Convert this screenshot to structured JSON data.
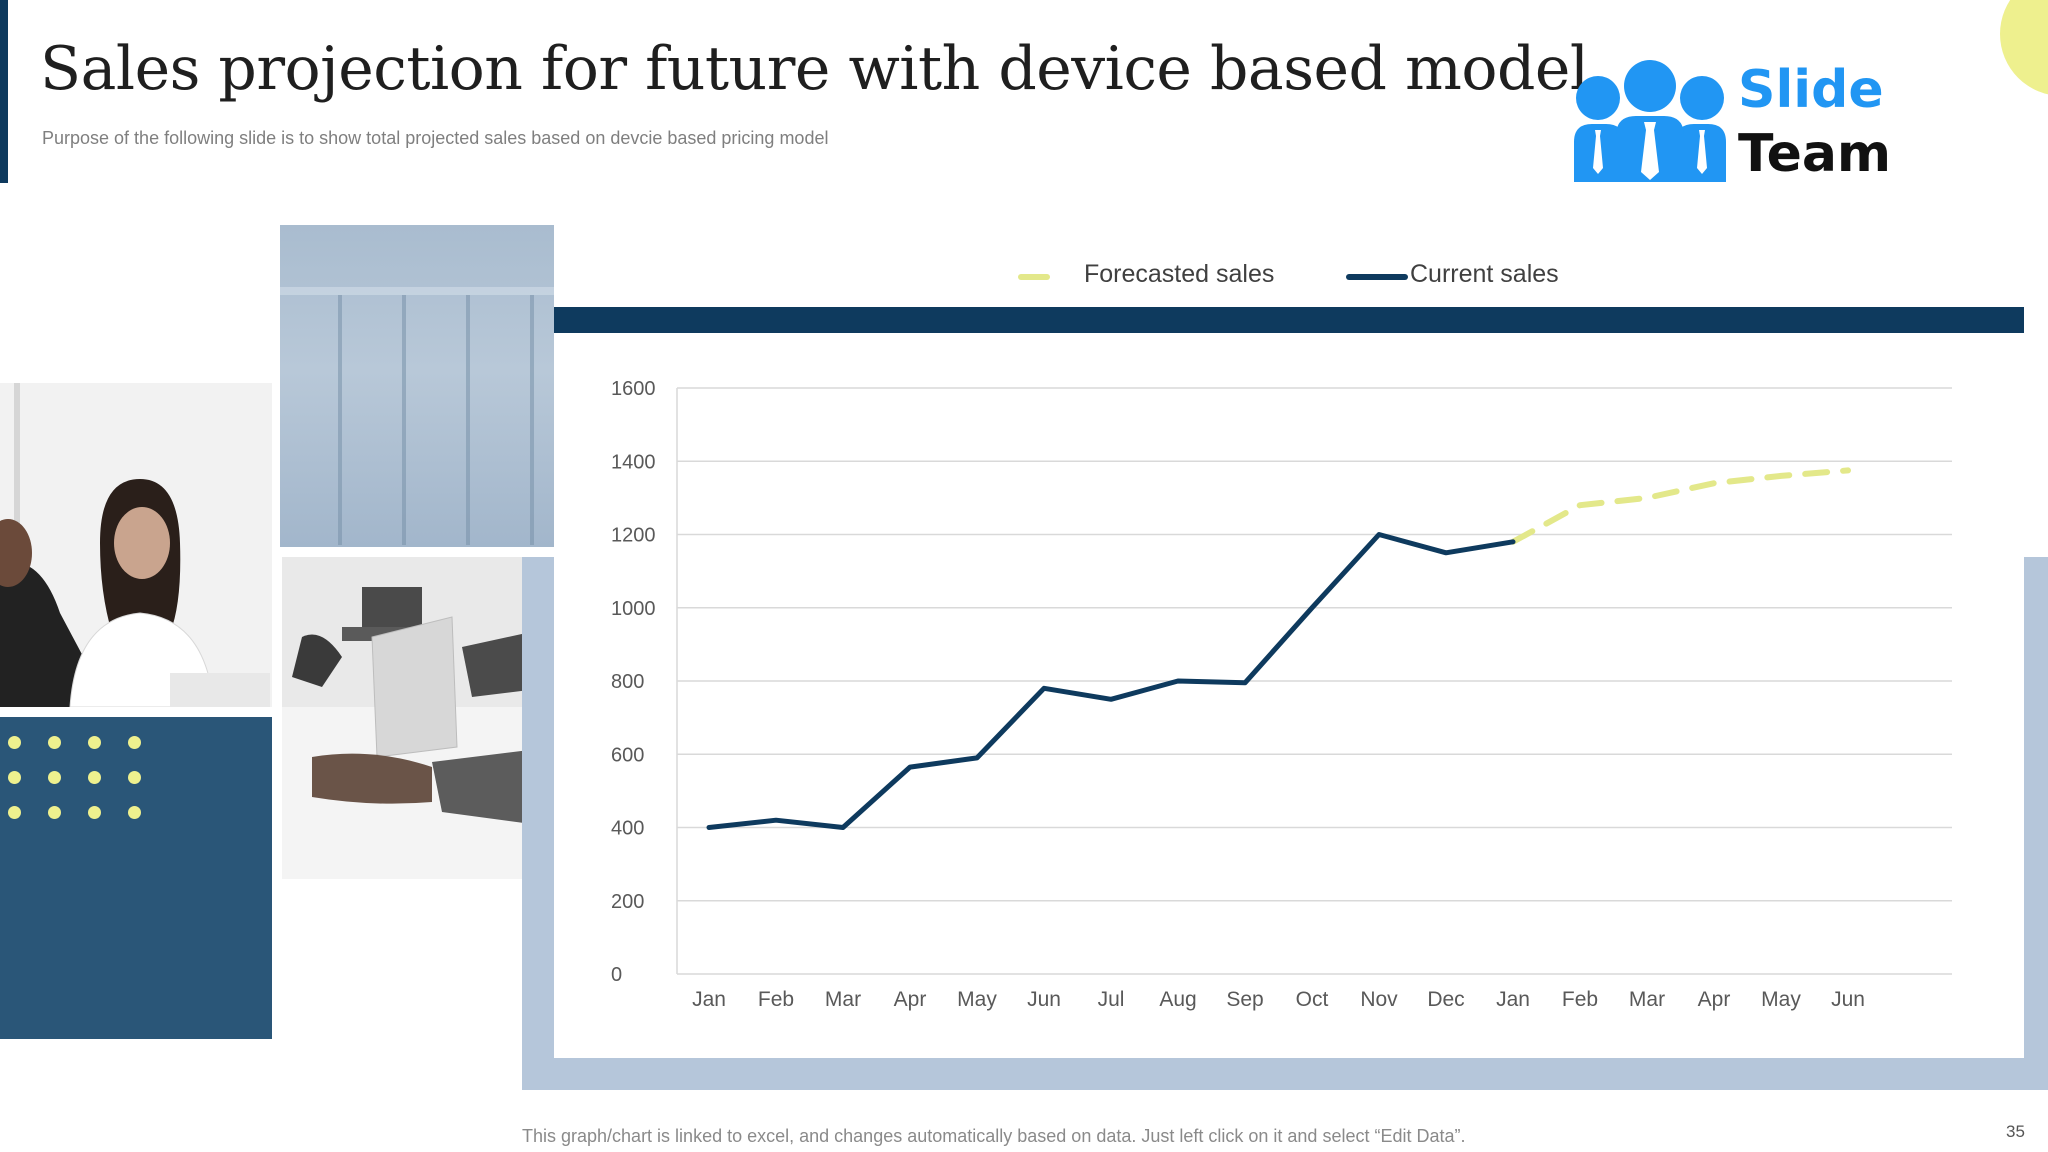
{
  "header": {
    "title": "Sales projection for future with device based model",
    "subtitle": "Purpose of the following slide is to show total projected sales based on devcie based pricing model"
  },
  "logo": {
    "line1": "Slide",
    "line2": "Team"
  },
  "legend": {
    "forecast_label": "Forecasted sales",
    "current_label": "Current sales"
  },
  "chart_data": {
    "type": "line",
    "title": "",
    "xlabel": "",
    "ylabel": "",
    "categories": [
      "Jan",
      "Feb",
      "Mar",
      "Apr",
      "May",
      "Jun",
      "Jul",
      "Aug",
      "Sep",
      "Oct",
      "Nov",
      "Dec",
      "Jan",
      "Feb",
      "Mar",
      "Apr",
      "May",
      "Jun"
    ],
    "ylim": [
      0,
      1600
    ],
    "yticks": [
      0,
      200,
      400,
      600,
      800,
      1000,
      1200,
      1400,
      1600
    ],
    "grid": true,
    "legend_position": "top-center",
    "series": [
      {
        "name": "Current sales",
        "style": "solid",
        "color": "#0e3a5e",
        "values": [
          400,
          420,
          400,
          565,
          590,
          780,
          750,
          800,
          795,
          1000,
          1200,
          1150,
          1180,
          null,
          null,
          null,
          null,
          null
        ]
      },
      {
        "name": "Forecasted sales",
        "style": "dashed",
        "color": "#e3e88a",
        "values": [
          null,
          null,
          null,
          null,
          null,
          null,
          null,
          null,
          null,
          null,
          null,
          null,
          1180,
          1280,
          1300,
          1340,
          1360,
          1375
        ]
      }
    ]
  },
  "footer": {
    "note": "This graph/chart is linked to excel, and changes automatically based on data. Just left click on it and select “Edit Data”.",
    "page_number": "35"
  },
  "colors": {
    "navy": "#0e3a5e",
    "teal_panel": "#2a5678",
    "light_blue": "#b5c6da",
    "yellow": "#eef08e",
    "logo_blue": "#2196f3"
  },
  "icons": [
    "slide-team-logo-icon",
    "dots-pattern-icon"
  ]
}
